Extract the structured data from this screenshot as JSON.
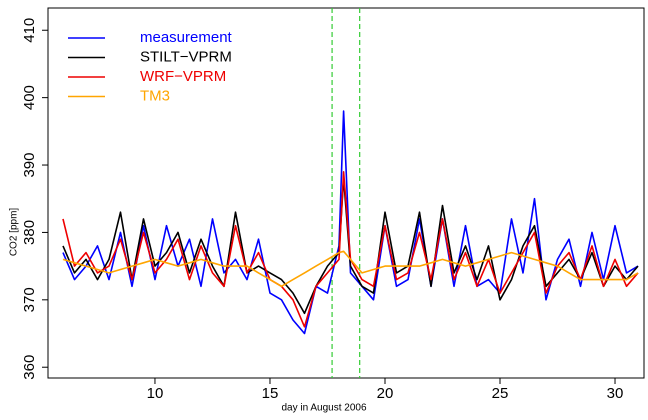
{
  "chart_data": {
    "type": "line",
    "xlabel": "day in August 2006",
    "ylabel": "CO2 [ppm]",
    "x": [
      6,
      6.5,
      7,
      7.5,
      8,
      8.5,
      9,
      9.5,
      10,
      10.5,
      11,
      11.5,
      12,
      12.5,
      13,
      13.5,
      14,
      14.5,
      15,
      15.5,
      16,
      16.5,
      17,
      17.5,
      18,
      18.2,
      18.5,
      19,
      19.5,
      20,
      20.5,
      21,
      21.5,
      22,
      22.5,
      23,
      23.5,
      24,
      24.5,
      25,
      25.5,
      26,
      26.5,
      27,
      27.5,
      28,
      28.5,
      29,
      29.5,
      30,
      30.5,
      31
    ],
    "series": [
      {
        "name": "measurement",
        "color": "#0000ff",
        "values": [
          377,
          373,
          375,
          378,
          373,
          380,
          372,
          381,
          373,
          381,
          375,
          379,
          372,
          382,
          374,
          376,
          373,
          379,
          371,
          370,
          367,
          365,
          372,
          371,
          378,
          398,
          374,
          372,
          370,
          381,
          372,
          373,
          382,
          372,
          382,
          372,
          381,
          372,
          373,
          371,
          382,
          374,
          385,
          370,
          376,
          379,
          372,
          380,
          373,
          381,
          374,
          375
        ]
      },
      {
        "name": "STILT−VPRM",
        "color": "#000000",
        "values": [
          378,
          374,
          376,
          373,
          376,
          383,
          373,
          382,
          375,
          377,
          380,
          374,
          379,
          375,
          372,
          383,
          374,
          375,
          374,
          373,
          371,
          368,
          372,
          375,
          377,
          388,
          375,
          372,
          371,
          383,
          374,
          375,
          383,
          372,
          384,
          374,
          378,
          373,
          378,
          370,
          373,
          378,
          381,
          372,
          374,
          376,
          373,
          377,
          372,
          375,
          373,
          375
        ]
      },
      {
        "name": "WRF−VPRM",
        "color": "#ee0000",
        "values": [
          382,
          375,
          377,
          374,
          375,
          379,
          373,
          380,
          374,
          376,
          379,
          373,
          378,
          374,
          372,
          381,
          374,
          377,
          373,
          372,
          370,
          366,
          372,
          374,
          376,
          389,
          376,
          373,
          372,
          381,
          373,
          374,
          380,
          373,
          382,
          373,
          377,
          372,
          376,
          371,
          374,
          377,
          380,
          371,
          375,
          377,
          373,
          378,
          372,
          376,
          372,
          374
        ]
      },
      {
        "name": "TM3",
        "color": "#ffa500",
        "values": [
          376,
          375.5,
          375,
          374.5,
          374,
          374.5,
          375,
          375.5,
          376,
          375.5,
          375,
          375.5,
          376,
          375.5,
          375,
          375,
          375,
          374,
          373,
          372,
          373,
          374,
          375,
          376,
          377,
          377.2,
          376,
          374,
          374.5,
          375,
          375,
          375,
          375,
          375.5,
          376,
          375.5,
          375,
          375.5,
          376,
          376.5,
          377,
          376.5,
          376,
          375.5,
          375,
          374,
          373,
          373,
          373,
          373,
          373,
          374
        ]
      }
    ],
    "xlim": [
      5.35,
      31.26
    ],
    "ylim": [
      358.4,
      413.3
    ],
    "xticks": [
      10,
      15,
      20,
      25,
      30
    ],
    "yticks": [
      360,
      370,
      380,
      390,
      400,
      410
    ],
    "vlines": [
      17.7,
      18.9
    ],
    "vline_color": "#33cc33",
    "legend": "top-left"
  }
}
